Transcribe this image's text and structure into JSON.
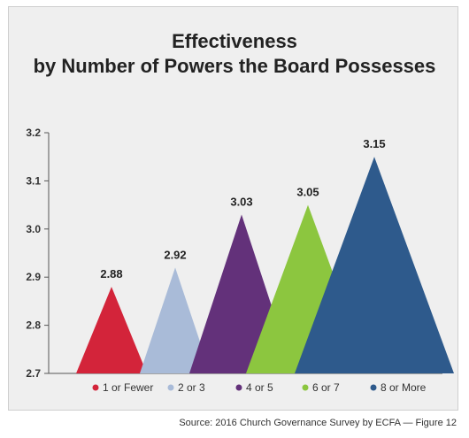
{
  "title_line1": "Effectiveness",
  "title_line2": "by Number of Powers the Board Possesses",
  "source": "Source: 2016 Church Governance Survey by ECFA — Figure 12",
  "chart_data": {
    "type": "bar",
    "title": "Effectiveness by Number of Powers the Board Possesses",
    "categories": [
      "1 or Fewer",
      "2 or 3",
      "4 or 5",
      "6 or 7",
      "8 or More"
    ],
    "values": [
      2.88,
      2.92,
      3.03,
      3.05,
      3.15
    ],
    "value_labels": [
      "2.88",
      "2.92",
      "3.03",
      "3.05",
      "3.15"
    ],
    "colors": [
      "#d3243a",
      "#a9bbd8",
      "#63317a",
      "#8cc63f",
      "#2e5a8c"
    ],
    "ylim": [
      2.7,
      3.2
    ],
    "yticks": [
      "2.7",
      "2.8",
      "2.9",
      "3.0",
      "3.1",
      "3.2"
    ],
    "xlabel": "",
    "ylabel": "",
    "legend_position": "bottom",
    "grid": false,
    "mark_shape": "triangle"
  }
}
